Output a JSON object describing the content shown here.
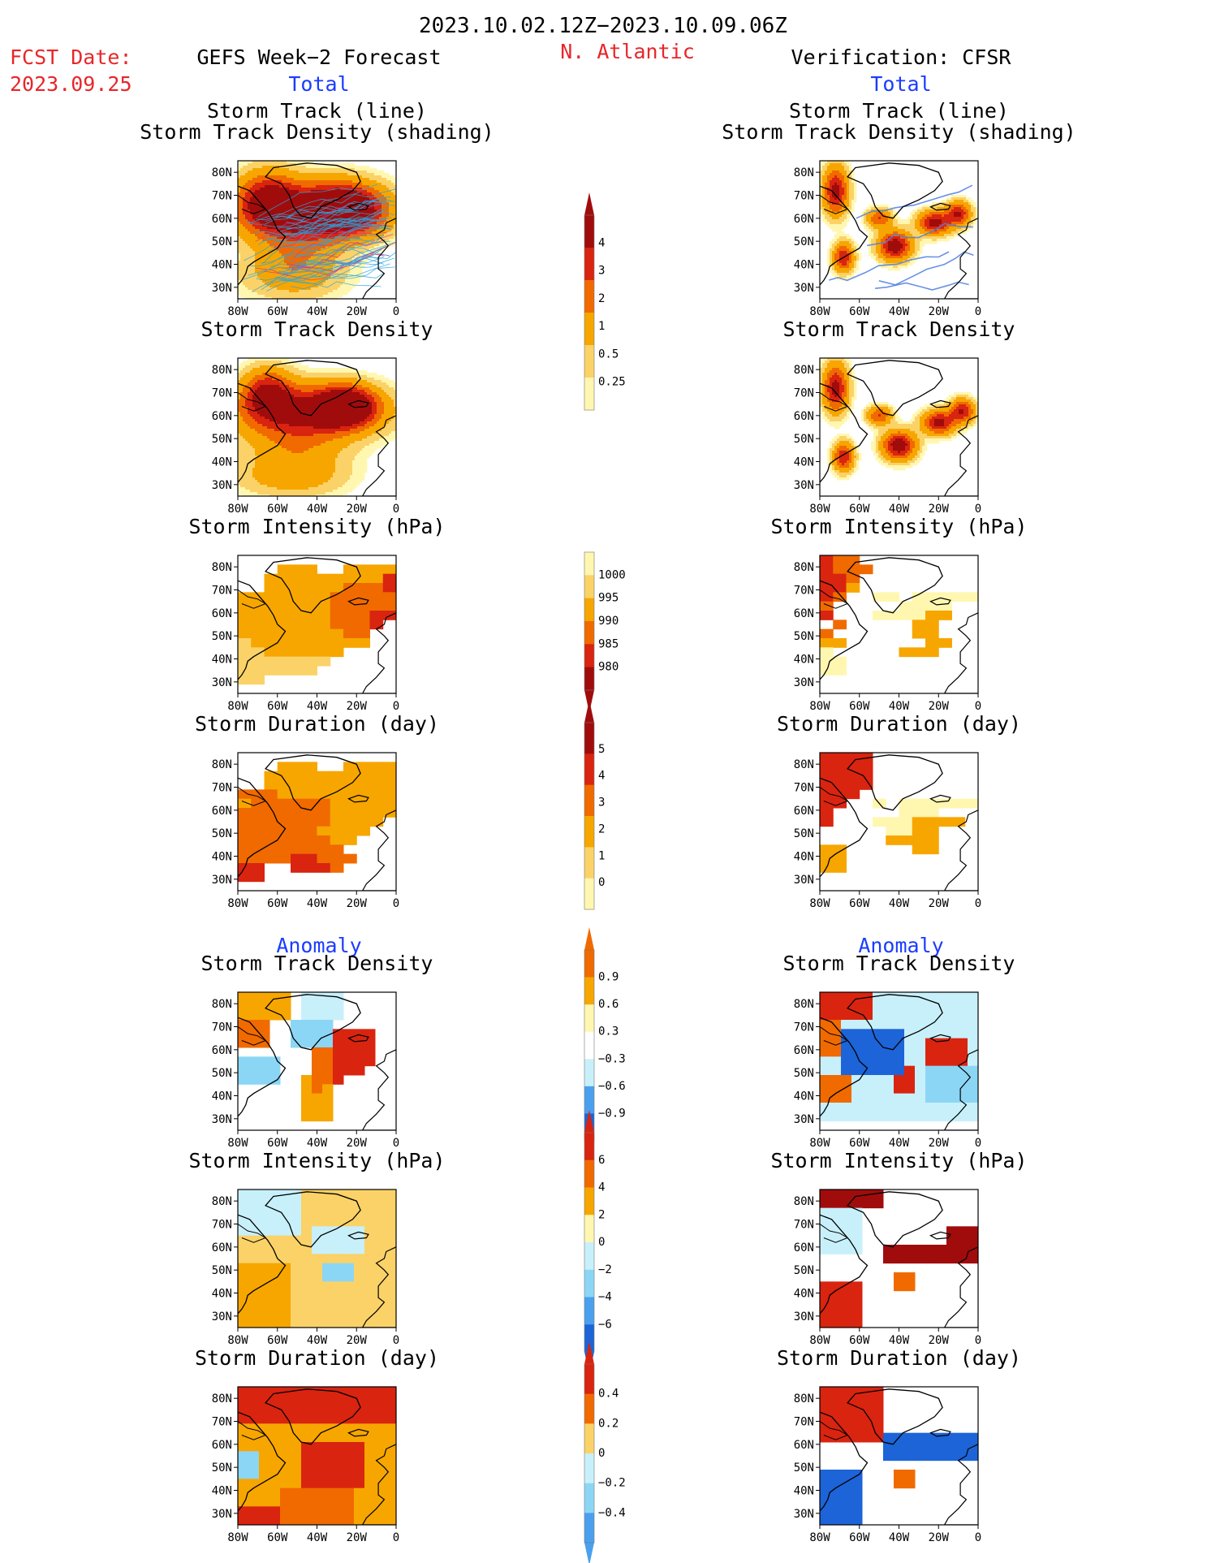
{
  "header": {
    "period": "2023.10.02.12Z−2023.10.09.06Z",
    "fcst_label": "FCST Date:",
    "fcst_date": "2023.09.25",
    "left_title": "GEFS Week−2 Forecast",
    "region": "N. Atlantic",
    "right_title": "Verification: CFSR",
    "total_label": "Total",
    "anomaly_label": "Anomaly"
  },
  "panel_titles": {
    "track": [
      "Storm Track (line)",
      "Storm Track Density (shading)"
    ],
    "density": "Storm Track Density",
    "intensity": "Storm Intensity (hPa)",
    "duration": "Storm Duration (day)"
  },
  "axes": {
    "x_ticks": [
      "80W",
      "60W",
      "40W",
      "20W",
      "0"
    ],
    "y_ticks": [
      "80N",
      "70N",
      "60N",
      "50N",
      "40N",
      "30N"
    ]
  },
  "colors": {
    "warm": [
      "#fff7b0",
      "#fbd267",
      "#f7a600",
      "#f06a00",
      "#d92410",
      "#a00c0c"
    ],
    "cool": [
      "#c8f0fb",
      "#8cd6f5",
      "#4aa0ee",
      "#1c64d8"
    ],
    "track_line_forecast": "#2aa5e0",
    "track_line_verify": "#4f7fe0",
    "track_line_red": "#d43a8a"
  },
  "chart_data": [
    {
      "type": "heatmap",
      "id": "fc-track",
      "title": "Storm Track (line) / Storm Track Density (shading)",
      "xlim": [
        -80,
        0
      ],
      "ylim": [
        25,
        85
      ],
      "note_colorbar": "cb-density",
      "blobs": [
        [
          -45,
          63,
          32,
          12,
          4.5
        ],
        [
          -25,
          64,
          18,
          10,
          5
        ],
        [
          -65,
          68,
          14,
          12,
          3.5
        ],
        [
          -50,
          45,
          20,
          16,
          1.5
        ],
        [
          -55,
          35,
          30,
          10,
          0.8
        ]
      ]
    },
    {
      "type": "heatmap",
      "id": "vf-track",
      "title": "Storm Track (line) / Storm Track Density (shading)",
      "xlim": [
        -80,
        0
      ],
      "ylim": [
        25,
        85
      ],
      "note_colorbar": "cb-density",
      "blobs": [
        [
          -72,
          72,
          6,
          10,
          4.5
        ],
        [
          -68,
          43,
          5,
          6,
          4
        ],
        [
          -42,
          48,
          8,
          6,
          5
        ],
        [
          -22,
          58,
          8,
          5,
          4.5
        ],
        [
          -10,
          62,
          6,
          5,
          4
        ],
        [
          -50,
          60,
          6,
          4,
          3
        ]
      ]
    },
    {
      "type": "heatmap",
      "id": "fc-density",
      "title": "Storm Track Density",
      "xlim": [
        -80,
        0
      ],
      "ylim": [
        25,
        85
      ],
      "blobs": [
        [
          -45,
          62,
          34,
          11,
          4.2
        ],
        [
          -25,
          64,
          14,
          8,
          5.5
        ],
        [
          -65,
          70,
          12,
          10,
          3.5
        ],
        [
          -50,
          45,
          24,
          15,
          1.6
        ],
        [
          -55,
          33,
          28,
          8,
          0.9
        ]
      ]
    },
    {
      "type": "heatmap",
      "id": "vf-density",
      "title": "Storm Track Density",
      "xlim": [
        -80,
        0
      ],
      "ylim": [
        25,
        85
      ],
      "blobs": [
        [
          -72,
          72,
          6,
          10,
          4.5
        ],
        [
          -68,
          42,
          5,
          6,
          4
        ],
        [
          -40,
          47,
          8,
          6,
          5
        ],
        [
          -20,
          57,
          8,
          5,
          4.5
        ],
        [
          -8,
          62,
          6,
          5,
          4
        ],
        [
          -50,
          60,
          6,
          4,
          3
        ]
      ]
    },
    {
      "type": "heatmap",
      "id": "fc-intensity",
      "title": "Storm Intensity (hPa)",
      "xlim": [
        -80,
        0
      ],
      "ylim": [
        25,
        85
      ],
      "cells": "interpolated from grid",
      "range": [
        980,
        1000
      ]
    },
    {
      "type": "heatmap",
      "id": "vf-intensity",
      "title": "Storm Intensity (hPa)",
      "xlim": [
        -80,
        0
      ],
      "ylim": [
        25,
        85
      ],
      "range": [
        980,
        1000
      ]
    },
    {
      "type": "heatmap",
      "id": "fc-duration",
      "title": "Storm Duration (day)",
      "xlim": [
        -80,
        0
      ],
      "ylim": [
        25,
        85
      ],
      "range": [
        0,
        5
      ]
    },
    {
      "type": "heatmap",
      "id": "vf-duration",
      "title": "Storm Duration (day)",
      "xlim": [
        -80,
        0
      ],
      "ylim": [
        25,
        85
      ],
      "range": [
        0,
        5
      ]
    },
    {
      "type": "heatmap",
      "id": "fc-anom-density",
      "title": "Storm Track Density",
      "xlim": [
        -80,
        0
      ],
      "ylim": [
        25,
        85
      ],
      "range": [
        -0.9,
        0.9
      ]
    },
    {
      "type": "heatmap",
      "id": "vf-anom-density",
      "title": "Storm Track Density",
      "xlim": [
        -80,
        0
      ],
      "ylim": [
        25,
        85
      ],
      "range": [
        -0.9,
        0.9
      ]
    },
    {
      "type": "heatmap",
      "id": "fc-anom-intensity",
      "title": "Storm Intensity (hPa)",
      "xlim": [
        -80,
        0
      ],
      "ylim": [
        25,
        85
      ],
      "range": [
        -6,
        6
      ]
    },
    {
      "type": "heatmap",
      "id": "vf-anom-intensity",
      "title": "Storm Intensity (hPa)",
      "xlim": [
        -80,
        0
      ],
      "ylim": [
        25,
        85
      ],
      "range": [
        -6,
        6
      ]
    },
    {
      "type": "heatmap",
      "id": "fc-anom-duration",
      "title": "Storm Duration (day)",
      "xlim": [
        -80,
        0
      ],
      "ylim": [
        25,
        85
      ],
      "range": [
        -0.4,
        0.4
      ]
    },
    {
      "type": "heatmap",
      "id": "vf-anom-duration",
      "title": "Storm Duration (day)",
      "xlim": [
        -80,
        0
      ],
      "ylim": [
        25,
        85
      ],
      "range": [
        -0.4,
        0.4
      ]
    }
  ],
  "colorbars": [
    {
      "id": "cb-density",
      "labels": [
        "4",
        "3",
        "2",
        "1",
        "0.5",
        "0.25"
      ]
    },
    {
      "id": "cb-intensity",
      "labels": [
        "1000",
        "995",
        "990",
        "985",
        "980"
      ]
    },
    {
      "id": "cb-duration",
      "labels": [
        "5",
        "4",
        "3",
        "2",
        "1",
        "0"
      ]
    },
    {
      "id": "cb-anom-density",
      "labels": [
        "0.9",
        "0.6",
        "0.3",
        "−0.3",
        "−0.6",
        "−0.9"
      ]
    },
    {
      "id": "cb-anom-intensity",
      "labels": [
        "6",
        "4",
        "2",
        "0",
        "−2",
        "−4",
        "−6"
      ]
    },
    {
      "id": "cb-anom-duration",
      "labels": [
        "0.4",
        "0.2",
        "0",
        "−0.2",
        "−0.4"
      ]
    }
  ],
  "grids": {
    "fc-intensity": [
      "............",
      "...333ww3333",
      "..3333333335",
      "..3333334445",
      "333333344444",
      "333333344444",
      "333333344455",
      "33333334445.",
      "3333333344..",
      "2333333333..",
      "22333333....",
      "2222222.....",
      "222222......",
      "22..........",
      "............"
    ],
    "vf-intensity": [
      "544.........",
      "5444........",
      "554.........",
      "553.........",
      "54..11.11111",
      "4.....1111..",
      "5...111133..",
      ".4.....33...",
      "4......33...",
      "33......33..",
      "1.....333...",
      "11..........",
      "11..........",
      "............",
      "............"
    ],
    "fc-duration": [
      "............",
      "...333ww3333",
      "..3333333333",
      "..3333333333",
      "444333333333",
      "344444433333",
      "444444433333",
      "44444443333.",
      "4444443333..",
      "444444433...",
      "44444444....",
      "444455444...",
      "55..5554....",
      "55..........",
      "............"
    ],
    "vf-duration": [
      "5555........",
      "5555........",
      "5555........",
      "5555........",
      "555.........",
      "55..1.111111",
      "5.....111...",
      "5...1113333.",
      ".....1133...",
      ".....3333...",
      "33.....33...",
      "33..........",
      "33..........",
      "............",
      "............"
    ]
  }
}
